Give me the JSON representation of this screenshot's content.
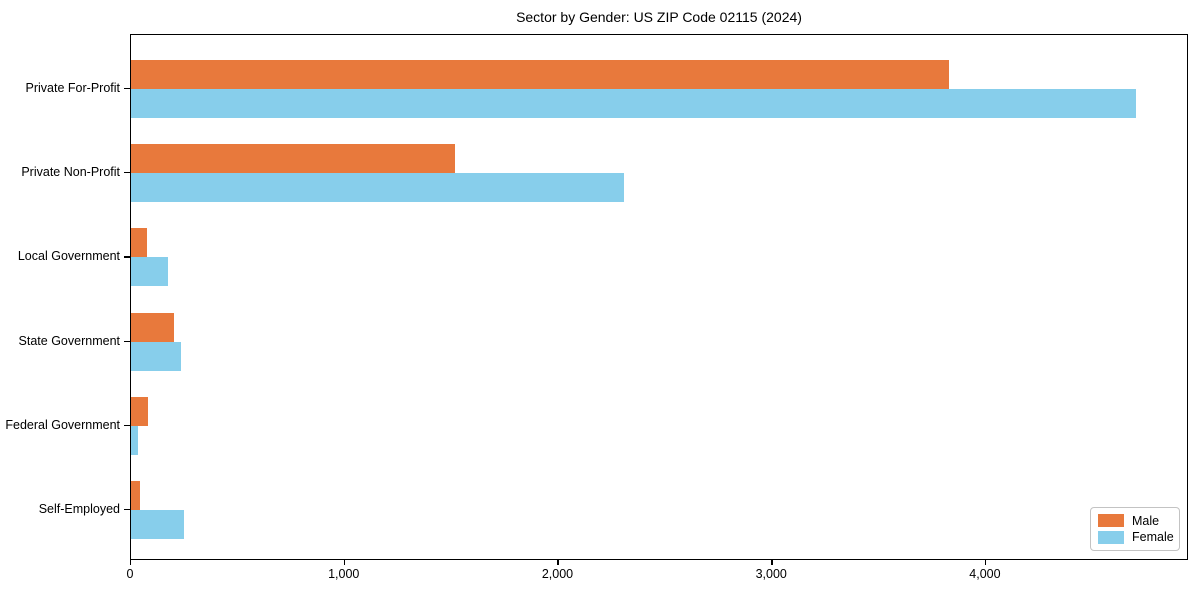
{
  "chart_data": {
    "type": "bar",
    "orientation": "horizontal",
    "title": "Sector by Gender: US ZIP Code 02115 (2024)",
    "categories": [
      "Private For-Profit",
      "Private Non-Profit",
      "Local Government",
      "State Government",
      "Federal Government",
      "Self-Employed"
    ],
    "series": [
      {
        "name": "Male",
        "color": "#e8793c",
        "values": [
          3835,
          1520,
          75,
          200,
          80,
          40
        ]
      },
      {
        "name": "Female",
        "color": "#87ceeb",
        "values": [
          4710,
          2310,
          175,
          235,
          35,
          250
        ]
      }
    ],
    "xlim": [
      0,
      4950
    ],
    "xtick_values": [
      0,
      1000,
      2000,
      3000,
      4000
    ],
    "xtick_labels": [
      "0",
      "1,000",
      "2,000",
      "3,000",
      "4,000"
    ],
    "xlabel": "",
    "ylabel": "",
    "grid": false,
    "legend_position": "lower right",
    "legend_entries": [
      "Male",
      "Female"
    ]
  }
}
